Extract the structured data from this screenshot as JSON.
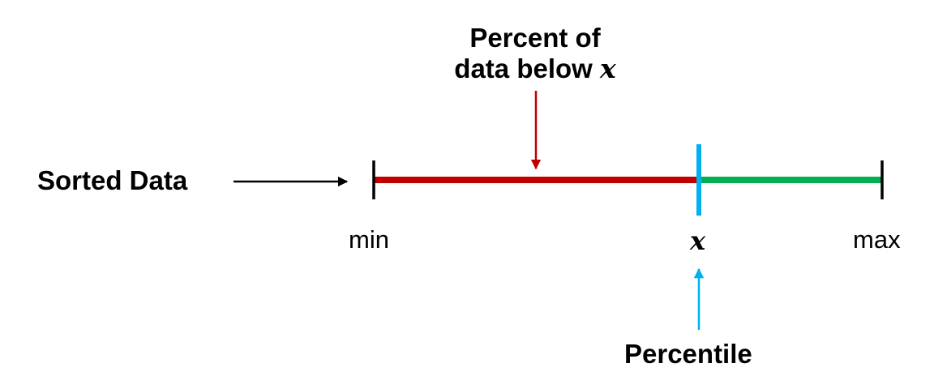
{
  "labels": {
    "sorted_data": "Sorted Data",
    "percent_line1": "Percent of",
    "percent_line2_prefix": "data below ",
    "percent_var": "x",
    "min": "min",
    "max": "max",
    "x_marker": "x",
    "percentile": "Percentile"
  },
  "colors": {
    "below_segment": "#c00000",
    "above_segment": "#00b050",
    "percentile_marker": "#00b0f0",
    "text": "#000000"
  }
}
